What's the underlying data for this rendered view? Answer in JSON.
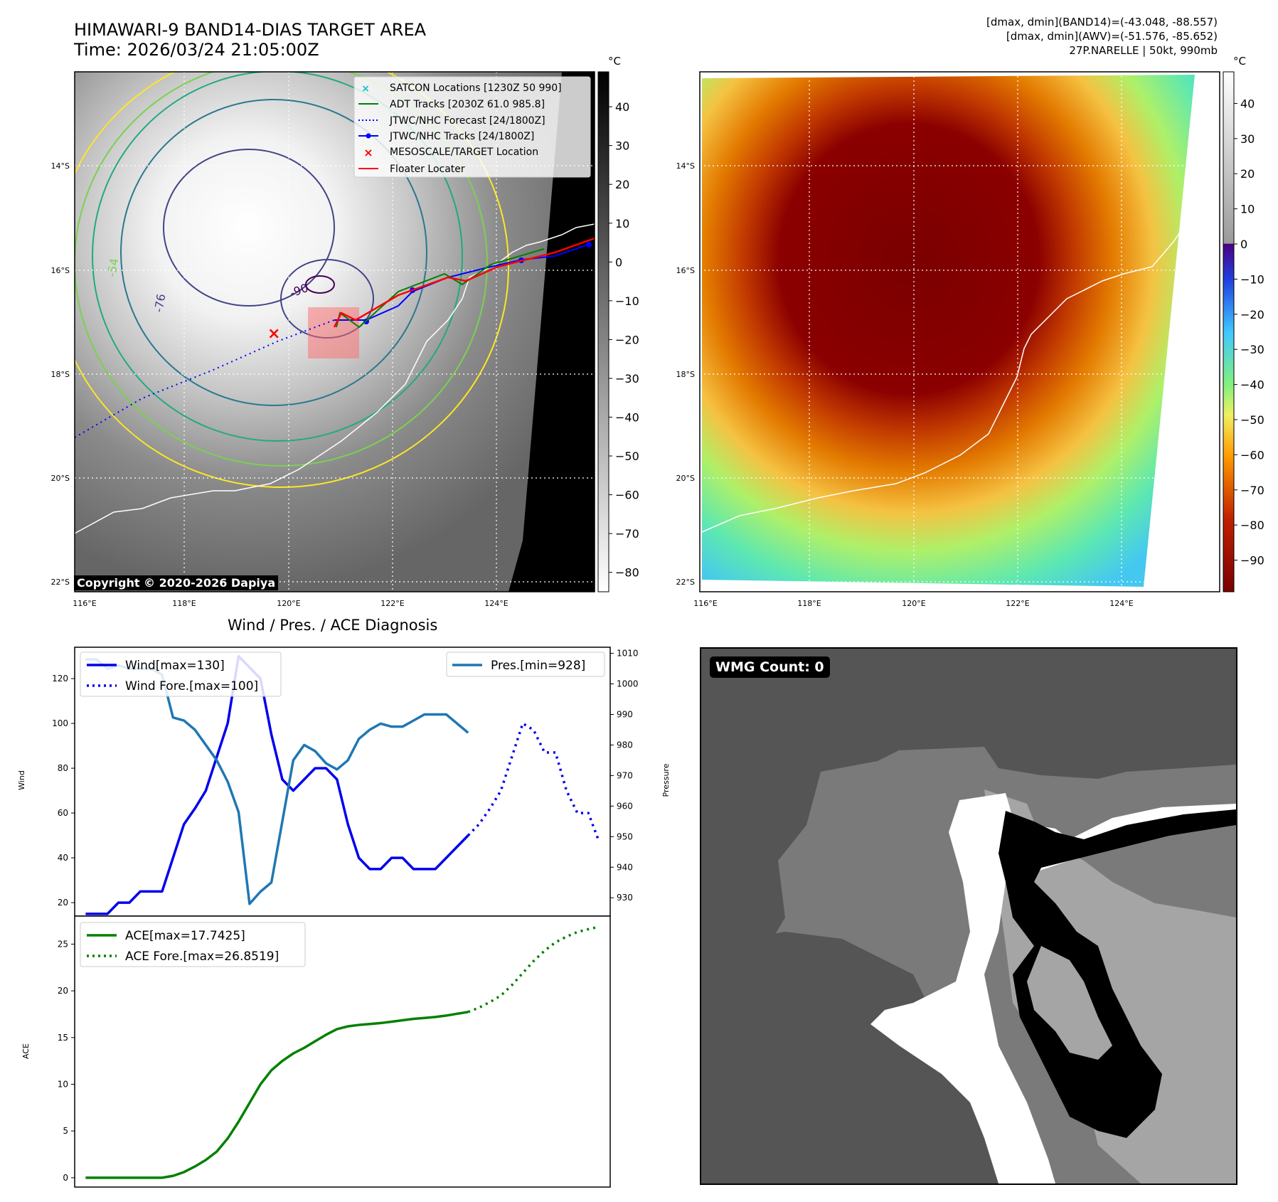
{
  "header": {
    "title_line1": "HIMAWARI-9 BAND14-DIAS TARGET AREA",
    "title_line2": "Time: 2026/03/24 21:05:00Z",
    "info_line1": "[dmax, dmin](BAND14)=(-43.048, -88.557)",
    "info_line2": "[dmax, dmin](AWV)=(-51.576, -85.652)",
    "info_line3": "27P.NARELLE | 50kt, 990mb"
  },
  "copyright": "Copyright © 2020-2026 Dapiya",
  "wmg_label": "WMG Count: 0",
  "map": {
    "lon_labels": [
      "116°E",
      "118°E",
      "120°E",
      "122°E",
      "124°E"
    ],
    "lat_labels": [
      "14°S",
      "16°S",
      "18°S",
      "20°S",
      "22°S"
    ],
    "contour_labels": [
      "-76",
      "-90",
      "-54"
    ],
    "legend": [
      {
        "label": "SATCON Locations [1230Z 50 990]",
        "color": "#17becf",
        "marker": "x"
      },
      {
        "label": "ADT Tracks [2030Z 61.0 985.8]",
        "color": "#008000",
        "marker": "line"
      },
      {
        "label": "JTWC/NHC Forecast [24/1800Z]",
        "color": "#0000ff",
        "marker": "dotted"
      },
      {
        "label": "JTWC/NHC Tracks [24/1800Z]",
        "color": "#0000ff",
        "marker": "dot-line"
      },
      {
        "label": "MESOSCALE/TARGET Location",
        "color": "#ff0000",
        "marker": "x"
      },
      {
        "label": "Floater Locater",
        "color": "#ff0000",
        "marker": "line"
      }
    ]
  },
  "colorbar1": {
    "unit": "°C",
    "ticks": [
      40,
      30,
      20,
      10,
      0,
      -10,
      -20,
      -30,
      -40,
      -50,
      -60,
      -70,
      -80
    ],
    "range": [
      49,
      -85
    ]
  },
  "colorbar2": {
    "unit": "°C",
    "ticks": [
      40,
      30,
      20,
      10,
      0,
      -10,
      -20,
      -30,
      -40,
      -50,
      -60,
      -70,
      -80,
      -90
    ],
    "range": [
      49,
      -99
    ]
  },
  "diag_title": "Wind / Pres. / ACE Diagnosis",
  "chart_data": [
    {
      "type": "line",
      "title": "Wind / Pres. / ACE Diagnosis",
      "ylabel": "Wind",
      "y2label": "Pressure",
      "ylim": [
        14,
        134
      ],
      "y2lim": [
        924,
        1012
      ],
      "yticks": [
        20,
        40,
        60,
        80,
        100,
        120
      ],
      "y2ticks": [
        930,
        940,
        950,
        960,
        970,
        980,
        990,
        1000,
        1010
      ],
      "series": [
        {
          "name": "Wind[max=130]",
          "axis": "left",
          "style": "solid",
          "color": "#0000ee",
          "x": [
            0,
            1,
            2,
            3,
            4,
            5,
            6,
            7,
            8,
            9,
            10,
            11,
            12,
            13,
            14,
            15,
            16,
            17,
            18,
            19,
            20,
            21,
            22,
            23,
            24,
            25,
            26,
            27,
            28,
            29,
            30,
            31,
            32,
            33,
            34,
            35
          ],
          "values": [
            15,
            15,
            15,
            20,
            20,
            25,
            25,
            25,
            40,
            55,
            62,
            70,
            85,
            100,
            130,
            125,
            120,
            95,
            75,
            70,
            75,
            80,
            80,
            75,
            55,
            40,
            35,
            35,
            40,
            40,
            35,
            35,
            35,
            40,
            45,
            50
          ]
        },
        {
          "name": "Wind Fore.[max=100]",
          "axis": "left",
          "style": "dotted",
          "color": "#0000ee",
          "x": [
            35,
            36,
            37,
            38,
            39,
            40,
            41,
            42,
            43,
            44,
            45,
            46,
            47
          ],
          "values": [
            50,
            55,
            62,
            70,
            85,
            100,
            97,
            87,
            87,
            70,
            60,
            60,
            47
          ]
        },
        {
          "name": "Pres.[min=928]",
          "axis": "right",
          "style": "solid",
          "color": "#1f77b4",
          "x": [
            0,
            1,
            2,
            3,
            4,
            5,
            6,
            7,
            8,
            9,
            10,
            11,
            12,
            13,
            14,
            15,
            16,
            17,
            18,
            19,
            20,
            21,
            22,
            23,
            24,
            25,
            26,
            27,
            28,
            29,
            30,
            31,
            32,
            33,
            34,
            35
          ],
          "values": [
            1008,
            1008,
            1005,
            1006,
            1005,
            1005,
            1005,
            1003,
            989,
            988,
            985,
            980,
            975,
            968,
            958,
            928,
            932,
            935,
            955,
            975,
            980,
            978,
            974,
            972,
            975,
            982,
            985,
            987,
            986,
            986,
            988,
            990,
            990,
            990,
            987,
            984
          ]
        }
      ]
    },
    {
      "type": "line",
      "ylabel": "ACE",
      "ylim": [
        -1,
        28
      ],
      "yticks": [
        0,
        5,
        10,
        15,
        20,
        25
      ],
      "series": [
        {
          "name": "ACE[max=17.7425]",
          "style": "solid",
          "color": "#008000",
          "x": [
            0,
            1,
            2,
            3,
            4,
            5,
            6,
            7,
            8,
            9,
            10,
            11,
            12,
            13,
            14,
            15,
            16,
            17,
            18,
            19,
            20,
            21,
            22,
            23,
            24,
            25,
            26,
            27,
            28,
            29,
            30,
            31,
            32,
            33,
            34,
            35
          ],
          "values": [
            0,
            0,
            0,
            0,
            0,
            0,
            0,
            0,
            0.2,
            0.6,
            1.2,
            1.9,
            2.8,
            4.2,
            6,
            8,
            10,
            11.5,
            12.5,
            13.3,
            13.9,
            14.6,
            15.3,
            15.9,
            16.2,
            16.35,
            16.45,
            16.55,
            16.7,
            16.85,
            17.0,
            17.1,
            17.2,
            17.35,
            17.55,
            17.74
          ]
        },
        {
          "name": "ACE Fore.[max=26.8519]",
          "style": "dotted",
          "color": "#008000",
          "x": [
            35,
            36,
            37,
            38,
            39,
            40,
            41,
            42,
            43,
            44,
            45,
            46,
            47
          ],
          "values": [
            17.74,
            18.2,
            18.8,
            19.5,
            20.6,
            21.9,
            23.2,
            24.3,
            25.2,
            25.8,
            26.3,
            26.6,
            26.85
          ]
        }
      ]
    }
  ]
}
